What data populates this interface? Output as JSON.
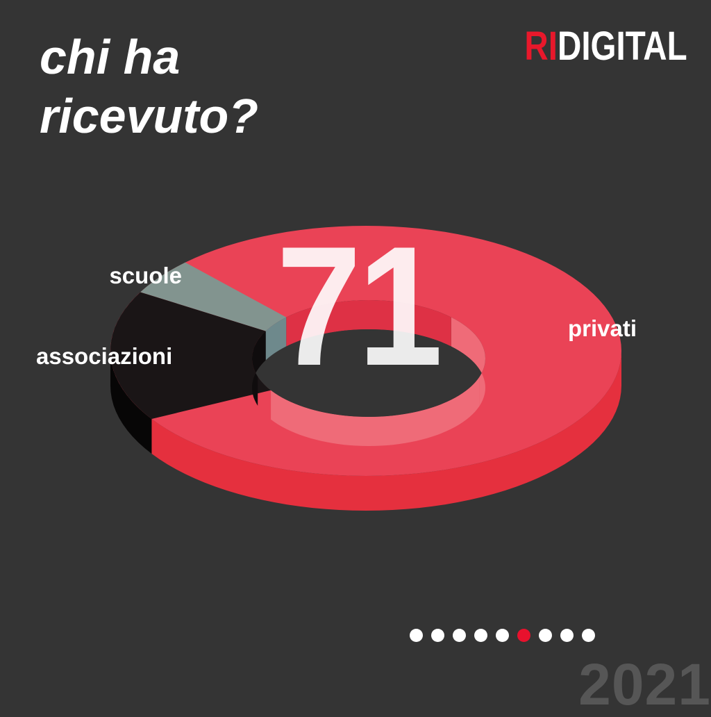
{
  "page": {
    "background_color": "#343434",
    "title_line1": "chi ha",
    "title_line2": "ricevuto?"
  },
  "logo": {
    "part1": "RI",
    "part2": "DIGITAL",
    "part1_color": "#e8182b",
    "part2_color": "#ffffff"
  },
  "chart_data": {
    "type": "pie",
    "style": "3d-donut",
    "title": "chi ha ricevuto?",
    "center_value": "71",
    "legend_position": "labels-around-chart",
    "segments": [
      {
        "label": "privati",
        "value": 71,
        "approx_share_pct": 78,
        "start_deg": 213,
        "end_deg": 495,
        "colors": {
          "top": "#ea4356",
          "side": "#e5303e",
          "inner_shadow": "#de3145",
          "inner_light": "#ef6b78"
        }
      },
      {
        "label": "scuole",
        "value": null,
        "approx_share_pct": 5,
        "start_deg": 135,
        "end_deg": 152,
        "colors": {
          "top": "#82948f",
          "side": "#6e898c",
          "inner_shadow": "#6e898c",
          "inner_light": "#6e898c"
        }
      },
      {
        "label": "associazioni",
        "value": null,
        "approx_share_pct": 17,
        "start_deg": 152,
        "end_deg": 213,
        "colors": {
          "top": "#1a1516",
          "side": "#070606",
          "inner_shadow": "#0f0c0d",
          "inner_light": "#0f0c0d"
        }
      }
    ]
  },
  "pagination": {
    "total": 9,
    "active_index": 5,
    "active_color": "#e8112d",
    "inactive_color": "#ffffff"
  },
  "year_watermark": "2021"
}
